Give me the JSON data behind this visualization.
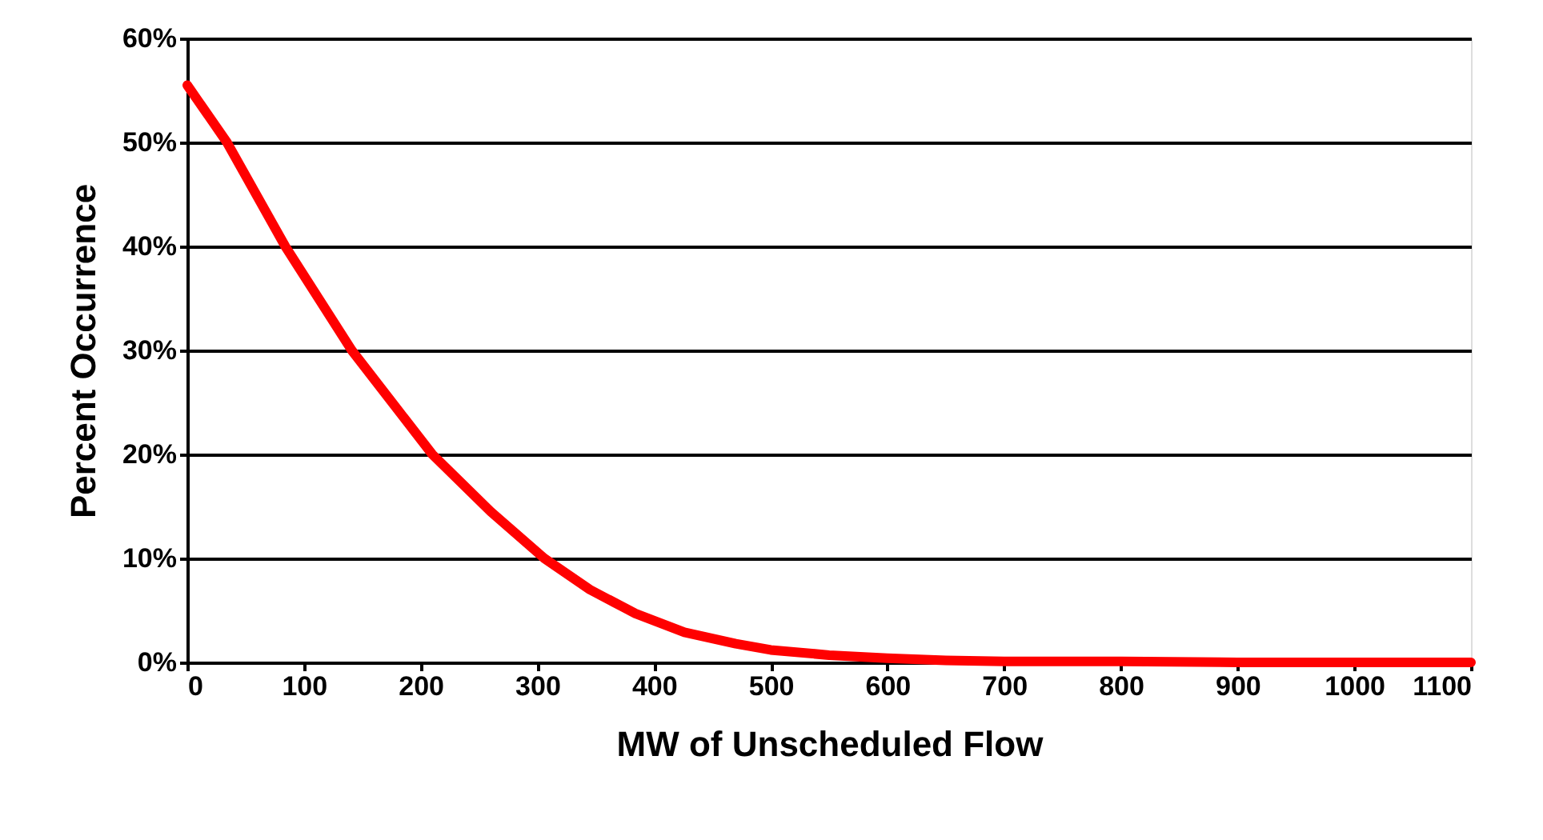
{
  "chart_data": {
    "type": "line",
    "xlabel": "MW of Unscheduled Flow",
    "ylabel": "Percent Occurrence",
    "x": [
      0,
      34,
      84,
      141,
      210,
      260,
      306,
      345,
      384,
      426,
      470,
      500,
      550,
      600,
      650,
      700,
      800,
      900,
      1000,
      1100
    ],
    "series": [
      {
        "color": "#ff0000",
        "values": [
          55.5,
          50,
          40,
          30,
          20,
          14.5,
          10,
          7,
          4.7,
          2.9,
          1.8,
          1.2,
          0.7,
          0.4,
          0.2,
          0.1,
          0.1,
          0,
          0,
          0
        ]
      }
    ],
    "xlim": [
      0,
      1100
    ],
    "xticks": [
      0,
      100,
      200,
      300,
      400,
      500,
      600,
      700,
      800,
      900,
      1000,
      1100
    ],
    "ylim": [
      0,
      60
    ],
    "yticks": [
      {
        "value": 0,
        "label": "0%"
      },
      {
        "value": 10,
        "label": "10%"
      },
      {
        "value": 20,
        "label": "20%"
      },
      {
        "value": 30,
        "label": "30%"
      },
      {
        "value": 40,
        "label": "40%"
      },
      {
        "value": 50,
        "label": "50%"
      },
      {
        "value": 60,
        "label": "60%"
      }
    ],
    "grid": "y",
    "legend": false,
    "marker": "none",
    "line_style": "solid"
  }
}
